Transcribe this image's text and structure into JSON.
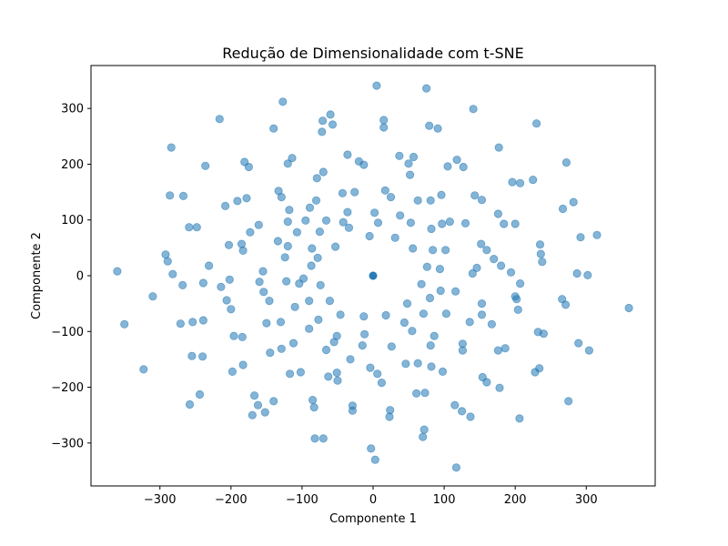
{
  "chart_data": {
    "type": "scatter",
    "title": "Redução de Dimensionalidade com t-SNE",
    "xlabel": "Componente 1",
    "ylabel": "Componente 2",
    "xlim": [
      -397,
      397
    ],
    "ylim": [
      -377,
      377
    ],
    "xticks": [
      -300,
      -200,
      -100,
      0,
      100,
      200,
      300
    ],
    "yticks": [
      -300,
      -200,
      -100,
      0,
      100,
      200,
      300
    ],
    "xtick_labels": [
      "−300",
      "−200",
      "−100",
      "0",
      "100",
      "200",
      "300"
    ],
    "ytick_labels": [
      "−300",
      "−200",
      "−100",
      "0",
      "100",
      "200",
      "300"
    ],
    "grid": false,
    "point_color": "#1f77b4",
    "point_alpha": 0.55,
    "points": [
      [
        -360,
        8
      ],
      [
        -350,
        -87
      ],
      [
        -323,
        -168
      ],
      [
        -310,
        -37
      ],
      [
        -292,
        38
      ],
      [
        -289,
        26
      ],
      [
        -286,
        144
      ],
      [
        -284,
        230
      ],
      [
        -282,
        3
      ],
      [
        -271,
        -86
      ],
      [
        -268,
        -17
      ],
      [
        -267,
        143
      ],
      [
        -259,
        87
      ],
      [
        -258,
        -231
      ],
      [
        -255,
        -144
      ],
      [
        -254,
        -83
      ],
      [
        -248,
        87
      ],
      [
        -244,
        -213
      ],
      [
        -240,
        -145
      ],
      [
        -239,
        -80
      ],
      [
        -239,
        -13
      ],
      [
        -236,
        197
      ],
      [
        -231,
        18
      ],
      [
        -216,
        281
      ],
      [
        -214,
        -20
      ],
      [
        -208,
        125
      ],
      [
        -206,
        -44
      ],
      [
        -203,
        55
      ],
      [
        -202,
        -7
      ],
      [
        -200,
        -60
      ],
      [
        -198,
        -172
      ],
      [
        -196,
        -108
      ],
      [
        -191,
        134
      ],
      [
        -185,
        57
      ],
      [
        -184,
        -110
      ],
      [
        -183,
        -160
      ],
      [
        -183,
        45
      ],
      [
        -181,
        204
      ],
      [
        -178,
        139
      ],
      [
        -175,
        195
      ],
      [
        -173,
        78
      ],
      [
        -170,
        -250
      ],
      [
        -167,
        -215
      ],
      [
        -162,
        -232
      ],
      [
        -161,
        91
      ],
      [
        -160,
        -11
      ],
      [
        -155,
        8
      ],
      [
        -154,
        -29
      ],
      [
        -152,
        -245
      ],
      [
        -150,
        -85
      ],
      [
        -146,
        -45
      ],
      [
        -145,
        -138
      ],
      [
        -140,
        264
      ],
      [
        -140,
        -225
      ],
      [
        -134,
        62
      ],
      [
        -133,
        152
      ],
      [
        -130,
        -83
      ],
      [
        -129,
        141
      ],
      [
        -129,
        -131
      ],
      [
        -127,
        312
      ],
      [
        -124,
        33
      ],
      [
        -122,
        -10
      ],
      [
        -120,
        201
      ],
      [
        -120,
        53
      ],
      [
        -120,
        97
      ],
      [
        -118,
        118
      ],
      [
        -117,
        -176
      ],
      [
        -114,
        211
      ],
      [
        -112,
        -121
      ],
      [
        -110,
        -56
      ],
      [
        -107,
        78
      ],
      [
        -104,
        -14
      ],
      [
        -102,
        -173
      ],
      [
        -98,
        -5
      ],
      [
        -95,
        99
      ],
      [
        -90,
        -45
      ],
      [
        -90,
        -95
      ],
      [
        -89,
        122
      ],
      [
        -87,
        18
      ],
      [
        -86,
        49
      ],
      [
        -85,
        -223
      ],
      [
        -83,
        -236
      ],
      [
        -82,
        -292
      ],
      [
        -80,
        135
      ],
      [
        -79,
        175
      ],
      [
        -78,
        32
      ],
      [
        -77,
        -79
      ],
      [
        -75,
        79
      ],
      [
        -74,
        -17
      ],
      [
        -72,
        258
      ],
      [
        -71,
        278
      ],
      [
        -70,
        -292
      ],
      [
        -70,
        186
      ],
      [
        -66,
        99
      ],
      [
        -66,
        -133
      ],
      [
        -63,
        -181
      ],
      [
        -61,
        -45
      ],
      [
        -60,
        289
      ],
      [
        -57,
        271
      ],
      [
        -55,
        -119
      ],
      [
        -53,
        52
      ],
      [
        -51,
        -108
      ],
      [
        -51,
        -174
      ],
      [
        -50,
        -188
      ],
      [
        -46,
        -70
      ],
      [
        -43,
        148
      ],
      [
        -42,
        96
      ],
      [
        -36,
        217
      ],
      [
        -36,
        114
      ],
      [
        -34,
        86
      ],
      [
        -32,
        -150
      ],
      [
        -29,
        -233
      ],
      [
        -29,
        -242
      ],
      [
        -26,
        150
      ],
      [
        -20,
        205
      ],
      [
        -15,
        -125
      ],
      [
        -13,
        199
      ],
      [
        -13,
        -73
      ],
      [
        -12,
        -105
      ],
      [
        -5,
        71
      ],
      [
        -4,
        -165
      ],
      [
        -3,
        -310
      ],
      [
        0,
        0
      ],
      [
        2,
        113
      ],
      [
        3,
        -330
      ],
      [
        5,
        341
      ],
      [
        6,
        -176
      ],
      [
        7,
        95
      ],
      [
        12,
        -192
      ],
      [
        15,
        266
      ],
      [
        15,
        279
      ],
      [
        17,
        153
      ],
      [
        18,
        -71
      ],
      [
        23,
        -253
      ],
      [
        24,
        -241
      ],
      [
        25,
        141
      ],
      [
        26,
        -127
      ],
      [
        31,
        68
      ],
      [
        37,
        215
      ],
      [
        38,
        108
      ],
      [
        44,
        -84
      ],
      [
        46,
        -158
      ],
      [
        48,
        -50
      ],
      [
        50,
        201
      ],
      [
        52,
        181
      ],
      [
        53,
        95
      ],
      [
        55,
        -99
      ],
      [
        56,
        49
      ],
      [
        57,
        213
      ],
      [
        61,
        -211
      ],
      [
        63,
        135
      ],
      [
        63,
        -157
      ],
      [
        68,
        -15
      ],
      [
        70,
        -289
      ],
      [
        71,
        -68
      ],
      [
        72,
        -276
      ],
      [
        73,
        -210
      ],
      [
        75,
        336
      ],
      [
        76,
        16
      ],
      [
        79,
        269
      ],
      [
        80,
        -40
      ],
      [
        81,
        -125
      ],
      [
        81,
        135
      ],
      [
        82,
        -163
      ],
      [
        82,
        84
      ],
      [
        84,
        46
      ],
      [
        86,
        -108
      ],
      [
        91,
        264
      ],
      [
        94,
        12
      ],
      [
        95,
        -27
      ],
      [
        96,
        145
      ],
      [
        97,
        93
      ],
      [
        98,
        -172
      ],
      [
        102,
        46
      ],
      [
        103,
        -68
      ],
      [
        105,
        196
      ],
      [
        108,
        97
      ],
      [
        115,
        -232
      ],
      [
        116,
        -28
      ],
      [
        117,
        -344
      ],
      [
        118,
        208
      ],
      [
        125,
        -243
      ],
      [
        126,
        -122
      ],
      [
        126,
        -134
      ],
      [
        127,
        195
      ],
      [
        130,
        94
      ],
      [
        136,
        -83
      ],
      [
        137,
        -253
      ],
      [
        140,
        4
      ],
      [
        141,
        299
      ],
      [
        143,
        144
      ],
      [
        146,
        14
      ],
      [
        152,
        57
      ],
      [
        153,
        136
      ],
      [
        153,
        -50
      ],
      [
        153,
        -70
      ],
      [
        154,
        -182
      ],
      [
        160,
        -191
      ],
      [
        160,
        46
      ],
      [
        167,
        -87
      ],
      [
        170,
        30
      ],
      [
        176,
        111
      ],
      [
        176,
        -134
      ],
      [
        177,
        230
      ],
      [
        178,
        -201
      ],
      [
        180,
        18
      ],
      [
        184,
        93
      ],
      [
        186,
        -130
      ],
      [
        194,
        6
      ],
      [
        196,
        168
      ],
      [
        200,
        -37
      ],
      [
        200,
        93
      ],
      [
        202,
        -42
      ],
      [
        204,
        -61
      ],
      [
        206,
        -256
      ],
      [
        207,
        166
      ],
      [
        207,
        -14
      ],
      [
        225,
        172
      ],
      [
        228,
        -173
      ],
      [
        230,
        273
      ],
      [
        232,
        -101
      ],
      [
        234,
        -166
      ],
      [
        235,
        56
      ],
      [
        236,
        39
      ],
      [
        238,
        25
      ],
      [
        240,
        -104
      ],
      [
        266,
        -42
      ],
      [
        267,
        120
      ],
      [
        271,
        -52
      ],
      [
        272,
        203
      ],
      [
        275,
        -225
      ],
      [
        282,
        132
      ],
      [
        287,
        4
      ],
      [
        289,
        -121
      ],
      [
        292,
        69
      ],
      [
        302,
        1
      ],
      [
        304,
        -134
      ],
      [
        315,
        73
      ],
      [
        360,
        -58
      ]
    ]
  }
}
